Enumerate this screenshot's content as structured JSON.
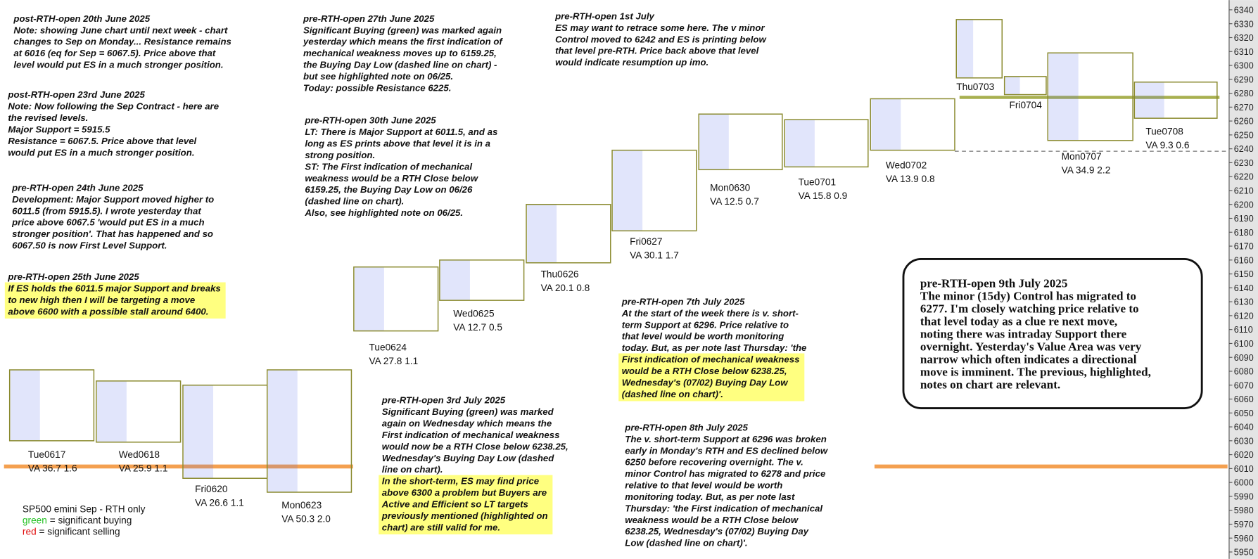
{
  "chart_data": {
    "type": "market-profile",
    "ylim": [
      5945,
      6347
    ],
    "yticks": [
      5950,
      5960,
      5970,
      5980,
      5990,
      6000,
      6010,
      6020,
      6030,
      6040,
      6050,
      6060,
      6070,
      6080,
      6090,
      6100,
      6110,
      6120,
      6130,
      6140,
      6150,
      6160,
      6170,
      6180,
      6190,
      6200,
      6210,
      6220,
      6230,
      6240,
      6250,
      6260,
      6270,
      6280,
      6290,
      6300,
      6310,
      6320,
      6330,
      6340
    ],
    "box_color": "#8a8a2e",
    "sessions": [
      {
        "label": "Tue0617",
        "va": "VA 36.7  1.6",
        "high": 6081,
        "low": 6030
      },
      {
        "label": "Wed0618",
        "va": "VA 25.9  1.1",
        "high": 6073,
        "low": 6029
      },
      {
        "label": "Fri0620",
        "va": "VA 26.6  1.1",
        "high": 6070,
        "low": 6003
      },
      {
        "label": "Mon0623",
        "va": "VA 50.3  2.0",
        "high": 6081,
        "low": 5993
      },
      {
        "label": "Tue0624",
        "va": "VA 27.8  1.1",
        "high": 6155,
        "low": 6109
      },
      {
        "label": "Wed0625",
        "va": "VA 12.7  0.5",
        "high": 6160,
        "low": 6131
      },
      {
        "label": "Thu0626",
        "va": "VA 20.1  0.8",
        "high": 6200,
        "low": 6158
      },
      {
        "label": "Fri0627",
        "va": "VA 30.1  1.7",
        "high": 6239,
        "low": 6181
      },
      {
        "label": "Mon0630",
        "va": "VA 12.5  0.7",
        "high": 6265,
        "low": 6225
      },
      {
        "label": "Tue0701",
        "va": "VA 15.8  0.9",
        "high": 6261,
        "low": 6227
      },
      {
        "label": "Wed0702",
        "va": "VA 13.9  0.8",
        "high": 6276,
        "low": 6239
      },
      {
        "label": "Thu0703",
        "va": null,
        "high": 6333,
        "low": 6291
      },
      {
        "label": "Fri0704",
        "va": null,
        "high": 6292,
        "low": 6279
      },
      {
        "label": "Mon0707",
        "va": "VA 34.9  2.2",
        "high": 6309,
        "low": 6246
      },
      {
        "label": "Tue0708",
        "va": "VA 9.3  0.6",
        "high": 6288,
        "low": 6262
      }
    ],
    "levels": [
      {
        "value": 6011.5,
        "color": "#f4a050",
        "style": "solid"
      },
      {
        "value": 6238.25,
        "color": "#888888",
        "style": "dashed"
      },
      {
        "value": 6277,
        "color": "#a8b050",
        "style": "solid"
      }
    ],
    "legend": {
      "title": "SP500 emini  Sep - RTH only",
      "items": [
        {
          "word": "green",
          "color": "#1fc01f",
          "text": "= significant buying"
        },
        {
          "word": "red",
          "color": "#e01010",
          "text": "= significant selling"
        }
      ]
    }
  },
  "notes": [
    {
      "title": "post-RTH-open 20th June 2025",
      "lines": [
        "Note: showing June chart until next week - chart",
        "changes to Sep on Monday... Resistance remains",
        "at 6016 (eq for Sep = 6067.5). Price above that",
        "level would put ES in a much stronger position."
      ]
    },
    {
      "title": "post-RTH-open 23rd June 2025",
      "lines": [
        "Note: Now following the Sep Contract - here are",
        "the revised levels.",
        "Major Support = 5915.5",
        "Resistance = 6067.5. Price above that level",
        "would put ES in a much stronger position."
      ]
    },
    {
      "title": "pre-RTH-open 24th June 2025",
      "lines": [
        "Development: Major Support moved higher to",
        "6011.5 (from 5915.5). I wrote yesterday that",
        "price above 6067.5 'would put ES in a much",
        "stronger position'. That has happened and so",
        "6067.50 is now First Level Support."
      ]
    },
    {
      "title": "pre-RTH-open 25th June 2025",
      "lines": [
        "If ES holds the 6011.5 major Support and breaks",
        "to new high then I will be targeting a move",
        "above 6600 with a possible stall around 6400."
      ]
    },
    {
      "title": "pre-RTH-open 27th June 2025",
      "lines": [
        "Significant Buying (green) was marked again",
        "yesterday which means the first indication of",
        "mechanical weakness moves up to 6159.25,",
        "the Buying Day Low (dashed line on chart) -",
        "but see highlighted note on 06/25.",
        "Today: possible Resistance 6225."
      ]
    },
    {
      "title": "pre-RTH-open 30th June 2025",
      "lines": [
        "LT: There is Major Support at 6011.5, and as",
        "long as ES prints above that level it is in a",
        "strong position.",
        "ST: The First indication of mechanical",
        "weakness would be a RTH Close below",
        "6159.25, the Buying Day Low on 06/26",
        "(dashed line on chart).",
        "Also, see highlighted note on 06/25."
      ]
    },
    {
      "title": "pre-RTH-open 1st July",
      "lines": [
        "ES may want to retrace some here. The v minor",
        "Control moved to 6242 and ES is printing below",
        "that level pre-RTH. Price back above that level",
        "would indicate resumption up imo."
      ]
    },
    {
      "title": "pre-RTH-open 3rd July 2025",
      "lines": [
        "Significant Buying (green) was marked",
        "again on Wednesday which means the",
        "First indication of mechanical weakness",
        "would now be a RTH Close below 6238.25,",
        "Wednesday's Buying Day Low (dashed",
        "line on chart).",
        "In the short-term, ES may find price",
        "above 6300 a problem but Buyers are",
        "Active and Efficient so LT targets",
        "previously mentioned (highlighted on",
        "chart) are still valid for me."
      ]
    },
    {
      "title": "pre-RTH-open 7th July 2025",
      "lines": [
        "At the start of the week there is v. short-",
        "term Support at 6296. Price relative to",
        "that level would be worth monitoring",
        "today. But, as per note last Thursday: 'the",
        "First indication of mechanical weakness",
        "would be a RTH Close below 6238.25,",
        "Wednesday's (07/02) Buying Day Low",
        "(dashed line on chart)'."
      ]
    },
    {
      "title": "pre-RTH-open 8th July 2025",
      "lines": [
        "The v. short-term Support at 6296 was broken",
        "early in Monday's RTH and ES declined below",
        "6250 before recovering overnight. The v.",
        "minor Control has migrated to 6278 and price",
        "relative to that level would be worth",
        "monitoring today. But, as per note last",
        "Thursday: 'the First indication of mechanical",
        "weakness would be a RTH Close below",
        "6238.25, Wednesday's (07/02) Buying Day",
        "Low (dashed line on chart)'."
      ]
    },
    {
      "title": "pre-RTH-open 9th July 2025",
      "lines": [
        "The minor (15dy) Control has migrated to",
        "6277. I'm closely watching price relative to",
        "that level today as a clue re next move,",
        "noting there was intraday Support there",
        "overnight. Yesterday's Value Area was very",
        "narrow which often indicates a directional",
        "move is imminent. The previous, highlighted,",
        "notes on chart are relevant."
      ]
    }
  ]
}
